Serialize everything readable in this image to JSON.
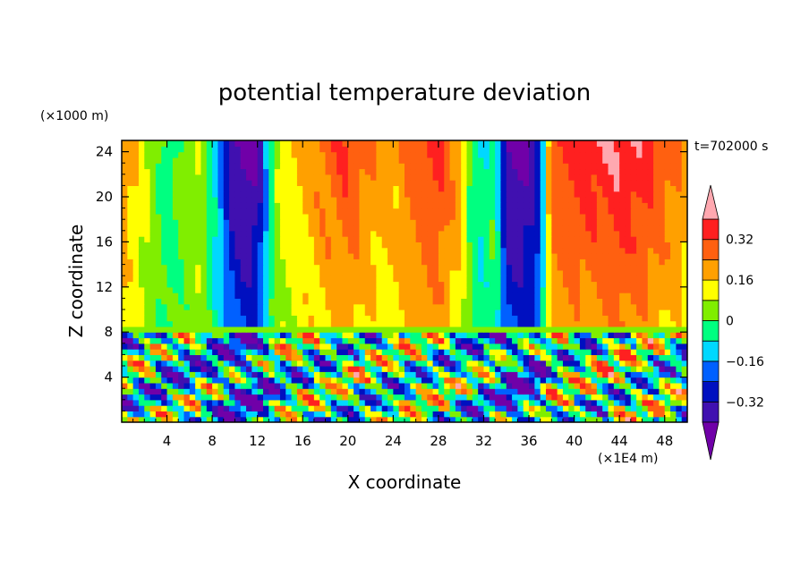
{
  "chart_data": {
    "type": "heatmap",
    "title": "potential temperature deviation",
    "xlabel": "X coordinate",
    "ylabel": "Z coordinate",
    "x_unit": "(×1E4 m)",
    "y_unit": "(×1000 m)",
    "time_label": "t=702000 s",
    "xlim": [
      0,
      50
    ],
    "ylim": [
      0,
      25
    ],
    "x_ticks": [
      4,
      8,
      12,
      16,
      20,
      24,
      28,
      32,
      36,
      40,
      44,
      48
    ],
    "y_ticks": [
      4,
      8,
      12,
      16,
      20,
      24
    ],
    "colorbar": {
      "levels": [
        -0.4,
        -0.32,
        -0.24,
        -0.16,
        -0.08,
        0,
        0.08,
        0.16,
        0.24,
        0.32,
        0.4
      ],
      "tick_labels": [
        "0.32",
        "0.16",
        "0",
        "−0.16",
        "−0.32"
      ],
      "tick_values": [
        0.32,
        0.16,
        0,
        -0.16,
        -0.32
      ],
      "colors": [
        "#7000a8",
        "#4010b0",
        "#0010c0",
        "#0060ff",
        "#00d8ff",
        "#00ff80",
        "#80ee00",
        "#ffff00",
        "#ffa000",
        "#ff6010",
        "#ff2020",
        "#ffa8b0"
      ]
    },
    "upper_layer_profile": {
      "x": [
        0,
        1,
        2.5,
        4,
        5.5,
        7,
        8.5,
        10,
        11,
        12,
        13,
        14,
        16,
        18,
        20,
        22,
        24,
        26,
        28,
        30,
        31,
        32,
        33,
        34,
        35,
        36,
        37,
        38,
        40,
        42,
        44,
        46,
        48,
        50
      ],
      "value": [
        0.24,
        0.18,
        0.08,
        -0.05,
        0.04,
        0.09,
        -0.16,
        -0.42,
        -0.45,
        -0.42,
        -0.1,
        0.12,
        0.2,
        0.28,
        0.34,
        0.24,
        0.2,
        0.3,
        0.36,
        0.2,
        -0.05,
        -0.1,
        0.0,
        -0.42,
        -0.45,
        -0.42,
        -0.3,
        0.33,
        0.36,
        0.38,
        0.42,
        0.38,
        0.3,
        0.22
      ]
    },
    "interface_height": 7.8
  }
}
